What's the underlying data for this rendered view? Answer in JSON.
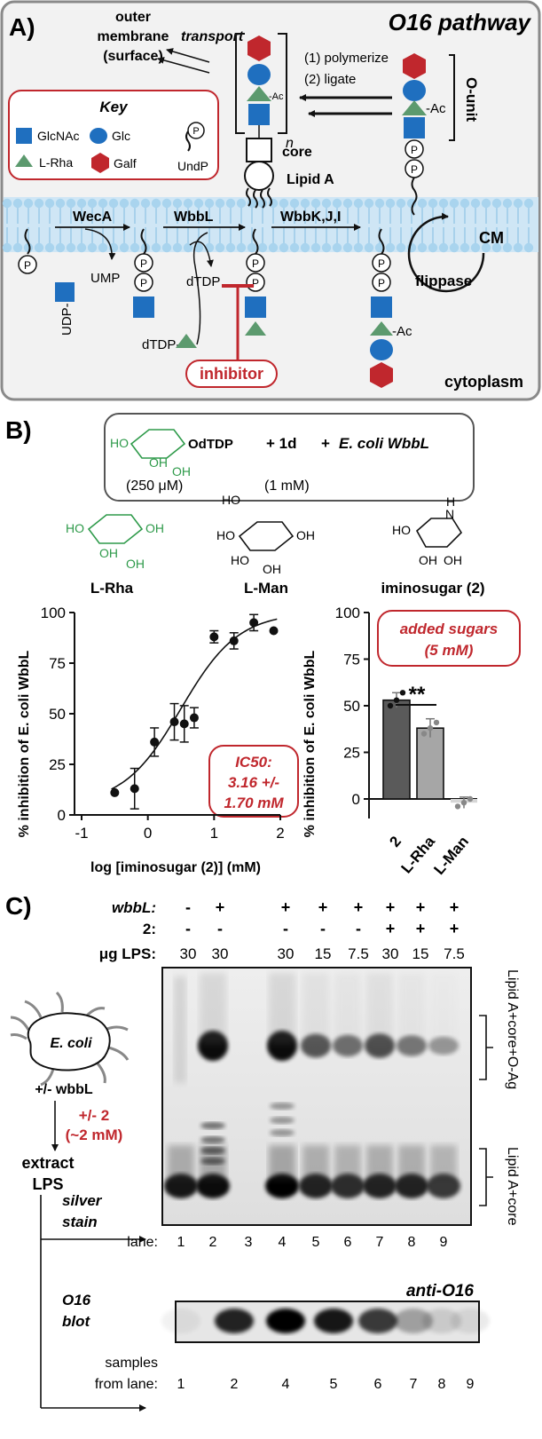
{
  "panelA": {
    "letter": "A)",
    "title": "O16 pathway",
    "outer_membrane": [
      "outer",
      "membrane",
      "(surface)"
    ],
    "transport": "transport",
    "steps": [
      "(1) polymerize",
      "(2) ligate"
    ],
    "subscript_n": "n",
    "ac": "-Ac",
    "o_unit": "O-unit",
    "core": "core",
    "lipid_a": "Lipid A",
    "cm": "CM",
    "flippase": "flippase",
    "phosphate": "P",
    "key": {
      "title": "Key",
      "items": [
        "GlcNAc",
        "Glc",
        "L-Rha",
        "Galf",
        "UndP"
      ]
    },
    "enzymes": [
      "WecA",
      "WbbL",
      "WbbK,J,I"
    ],
    "udp": "UDP-",
    "ump": "UMP",
    "dtdp": "dTDP",
    "dtdp_donor": "dTDP-",
    "inhibitor": "inhibitor",
    "cytoplasm": "cytoplasm",
    "colors": {
      "glcnac": "#1f6fbf",
      "glc": "#1f6fbf",
      "rha": "#5c9a6e",
      "galf": "#c0272d",
      "inhibit": "#c0272d"
    }
  },
  "panelB": {
    "letter": "B)",
    "reaction": {
      "substrate_label": "OdTDP",
      "substrate_conc": "(250 μM)",
      "plus1": "+ 1d",
      "plus2": "+",
      "enzyme": "E. coli WbbL",
      "conc2": "(1 mM)"
    },
    "structures": [
      "L-Rha",
      "L-Man",
      "iminosugar (2)"
    ],
    "struct_atoms": {
      "ho": "HO",
      "oh": "OH",
      "nh": "H",
      "n": "N"
    }
  },
  "chart_data": [
    {
      "type": "scatter",
      "ylabel": "% inhibition of E. coli WbbL",
      "xlabel": "log [iminosugar (2)] (mM)",
      "xlim": [
        -1,
        2
      ],
      "ylim": [
        0,
        100
      ],
      "xticks": [
        "-1",
        "0",
        "1",
        "2"
      ],
      "yticks": [
        "0",
        "25",
        "50",
        "75",
        "100"
      ],
      "x": [
        -0.5,
        -0.2,
        0.1,
        0.4,
        0.55,
        0.7,
        1.0,
        1.3,
        1.6,
        1.9
      ],
      "y": [
        11,
        13,
        36,
        46,
        45,
        48,
        88,
        86,
        95,
        91
      ],
      "err": [
        0,
        10,
        7,
        9,
        9,
        5,
        3,
        4,
        4,
        0
      ],
      "fit": {
        "model": "sigmoid",
        "logIC50": 0.5,
        "bottom": 5,
        "top": 100,
        "hill": 1
      },
      "annotation": [
        "IC50:",
        "3.16 +/-",
        "1.70 mM"
      ]
    },
    {
      "type": "bar",
      "ylabel": "% inhibition of E. coli WbbL",
      "categories": [
        "2",
        "L-Rha",
        "L-Man"
      ],
      "values": [
        53,
        38,
        -2
      ],
      "err": [
        4,
        5,
        3
      ],
      "points": [
        [
          50,
          53,
          57
        ],
        [
          35,
          38,
          41
        ],
        [
          -4,
          -2,
          0
        ]
      ],
      "ylim": [
        -10,
        100
      ],
      "yticks": [
        "0",
        "25",
        "50",
        "75",
        "100"
      ],
      "colors": [
        "#5a5a5a",
        "#a6a6a6",
        "#d6d6d6"
      ],
      "significance": "**",
      "annotation": [
        "added sugars",
        "(5 mM)"
      ]
    }
  ],
  "panelC": {
    "letter": "C)",
    "row_labels": [
      "wbbL:",
      "2:",
      "μg LPS:"
    ],
    "wbbL": [
      "-",
      "+",
      "+",
      "+",
      "+",
      "+",
      "+",
      "+"
    ],
    "cpd2": [
      "-",
      "-",
      "-",
      "-",
      "-",
      "+",
      "+",
      "+"
    ],
    "lps": [
      "30",
      "30",
      "30",
      "15",
      "7.5",
      "30",
      "15",
      "7.5"
    ],
    "right_labels": [
      "Lipid A+core+O-Ag",
      "Lipid A+core"
    ],
    "ecoli": "E. coli",
    "wbbl_toggle": "+/- wbbL",
    "treat": [
      "+/- 2",
      "(~2 mM)"
    ],
    "extract": [
      "extract",
      "LPS"
    ],
    "silver": [
      "silver",
      "stain"
    ],
    "lane_label": "lane:",
    "lanes": [
      "1",
      "2",
      "3",
      "4",
      "5",
      "6",
      "7",
      "8",
      "9"
    ],
    "blot": [
      "O16",
      "blot"
    ],
    "anti": "anti-O16",
    "samples": [
      "samples",
      "from lane:"
    ],
    "blot_lanes": [
      "1",
      "2",
      "4",
      "5",
      "6",
      "7",
      "8",
      "9"
    ]
  }
}
